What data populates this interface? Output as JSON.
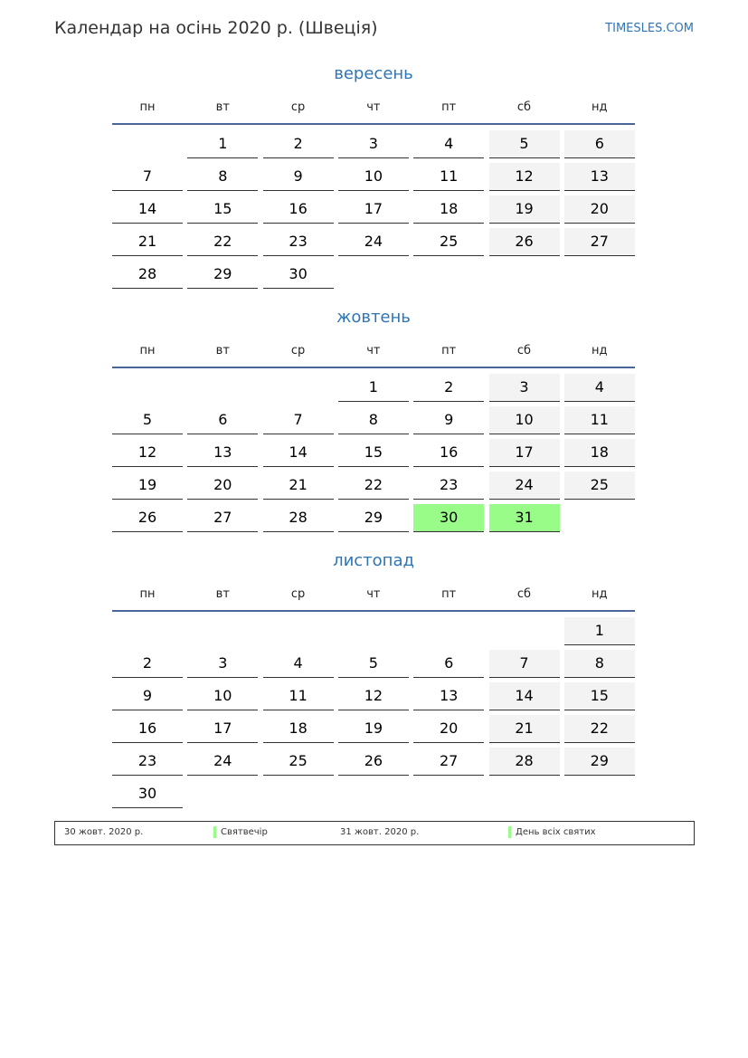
{
  "header": {
    "title": "Календар на осінь 2020 р. (Швеція)",
    "brand": "TIMESLES.COM"
  },
  "weekdays": [
    "пн",
    "вт",
    "ср",
    "чт",
    "пт",
    "сб",
    "нд"
  ],
  "colors": {
    "accent": "#2e75b6",
    "weekend": "#f3f3f3",
    "holiday": "#99fb88",
    "rule": "#4a6599"
  },
  "months": [
    {
      "name": "вересень",
      "weeks": [
        [
          null,
          1,
          2,
          3,
          4,
          5,
          6
        ],
        [
          7,
          8,
          9,
          10,
          11,
          12,
          13
        ],
        [
          14,
          15,
          16,
          17,
          18,
          19,
          20
        ],
        [
          21,
          22,
          23,
          24,
          25,
          26,
          27
        ],
        [
          28,
          29,
          30,
          null,
          null,
          null,
          null
        ]
      ],
      "holidays": []
    },
    {
      "name": "жовтень",
      "weeks": [
        [
          null,
          null,
          null,
          1,
          2,
          3,
          4
        ],
        [
          5,
          6,
          7,
          8,
          9,
          10,
          11
        ],
        [
          12,
          13,
          14,
          15,
          16,
          17,
          18
        ],
        [
          19,
          20,
          21,
          22,
          23,
          24,
          25
        ],
        [
          26,
          27,
          28,
          29,
          30,
          31,
          null
        ]
      ],
      "holidays": [
        30,
        31
      ]
    },
    {
      "name": "листопад",
      "weeks": [
        [
          null,
          null,
          null,
          null,
          null,
          null,
          1
        ],
        [
          2,
          3,
          4,
          5,
          6,
          7,
          8
        ],
        [
          9,
          10,
          11,
          12,
          13,
          14,
          15
        ],
        [
          16,
          17,
          18,
          19,
          20,
          21,
          22
        ],
        [
          23,
          24,
          25,
          26,
          27,
          28,
          29
        ],
        [
          30,
          null,
          null,
          null,
          null,
          null,
          null
        ]
      ],
      "holidays": []
    }
  ],
  "legend": [
    {
      "date": "30 жовт. 2020 р.",
      "name": "Святвечір"
    },
    {
      "date": "31 жовт. 2020 р.",
      "name": "День всіх святих"
    }
  ]
}
